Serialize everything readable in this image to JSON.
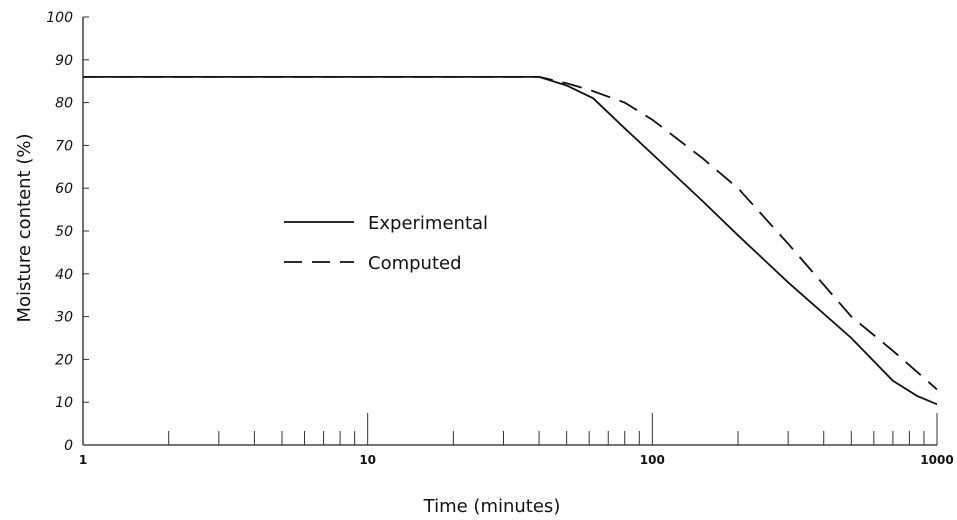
{
  "chart_data": {
    "type": "line",
    "xlabel": "Time (minutes)",
    "ylabel": "Moisture content (%)",
    "xscale": "log",
    "xlim": [
      1,
      1000
    ],
    "ylim": [
      0,
      100
    ],
    "x_tick_labels": [
      "1",
      "10",
      "100",
      "1000"
    ],
    "x_ticks": [
      1,
      10,
      100,
      1000
    ],
    "y_ticks": [
      0,
      10,
      20,
      30,
      40,
      50,
      60,
      70,
      80,
      90,
      100
    ],
    "y_tick_labels": [
      "0",
      "10",
      "20",
      "30",
      "40",
      "50",
      "60",
      "70",
      "80",
      "90",
      "100"
    ],
    "legend_placement": "center-left",
    "series": [
      {
        "name": "Experimental",
        "style": "solid",
        "color": "#111111",
        "x": [
          1,
          10,
          40,
          50,
          62,
          80,
          100,
          150,
          200,
          300,
          500,
          700,
          850,
          1000
        ],
        "y": [
          86,
          86,
          86,
          84,
          81,
          74,
          68,
          57,
          49,
          38,
          25,
          15,
          11.5,
          9.5
        ]
      },
      {
        "name": "Computed",
        "style": "dashed",
        "color": "#111111",
        "x": [
          1,
          10,
          40,
          50,
          60,
          80,
          100,
          150,
          200,
          300,
          500,
          700,
          1000
        ],
        "y": [
          86,
          86,
          86,
          84.5,
          83,
          80,
          76,
          67,
          60,
          47,
          30,
          22,
          13
        ]
      }
    ]
  }
}
